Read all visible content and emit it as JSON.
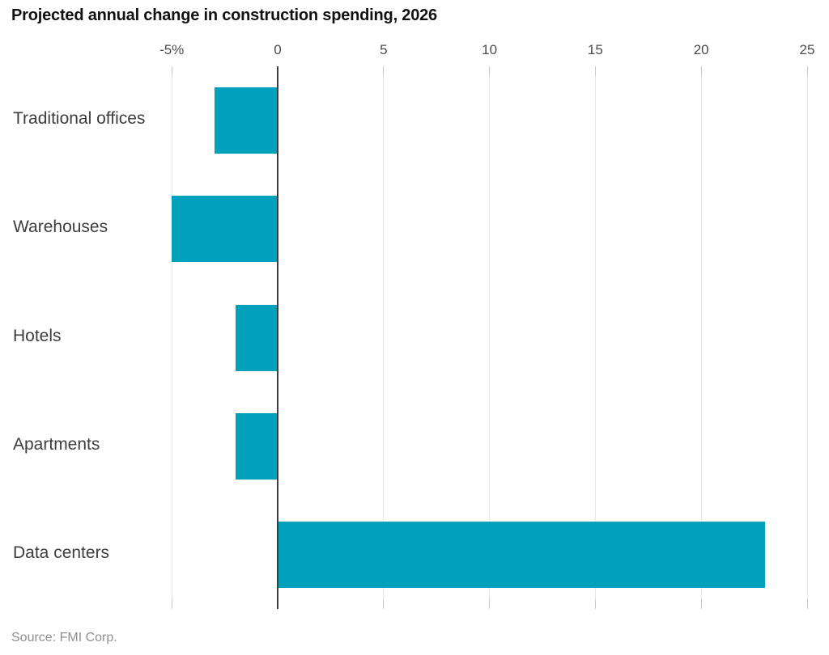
{
  "title": "Projected annual change in construction spending, 2026",
  "source": "Source: FMI Corp.",
  "colors": {
    "bar": "#00a1bc",
    "zero_line": "#3d3d3d",
    "gridline": "#e7e7e7",
    "tick": "#c9c9c9",
    "title_text": "#111111",
    "category_text": "#3d3d3d",
    "tick_text": "#4a4a4a",
    "source_text": "#8f8f8f",
    "background": "#ffffff"
  },
  "chart_data": {
    "type": "bar",
    "orientation": "horizontal",
    "title": "Projected annual change in construction spending, 2026",
    "categories": [
      "Traditional offices",
      "Warehouses",
      "Hotels",
      "Apartments",
      "Data centers"
    ],
    "values": [
      -3,
      -5,
      -2,
      -2,
      23
    ],
    "unit": "%",
    "xlabel": "",
    "ylabel": "",
    "xlim": [
      -5.2,
      26
    ],
    "x_ticks": [
      -5,
      0,
      5,
      10,
      15,
      20,
      25
    ],
    "x_tick_labels": [
      "-5%",
      "0",
      "5",
      "10",
      "15",
      "20",
      "25"
    ],
    "grid": "vertical-gridlines",
    "legend": "none",
    "bar_color": "#00a1bc",
    "source": "Source: FMI Corp."
  }
}
